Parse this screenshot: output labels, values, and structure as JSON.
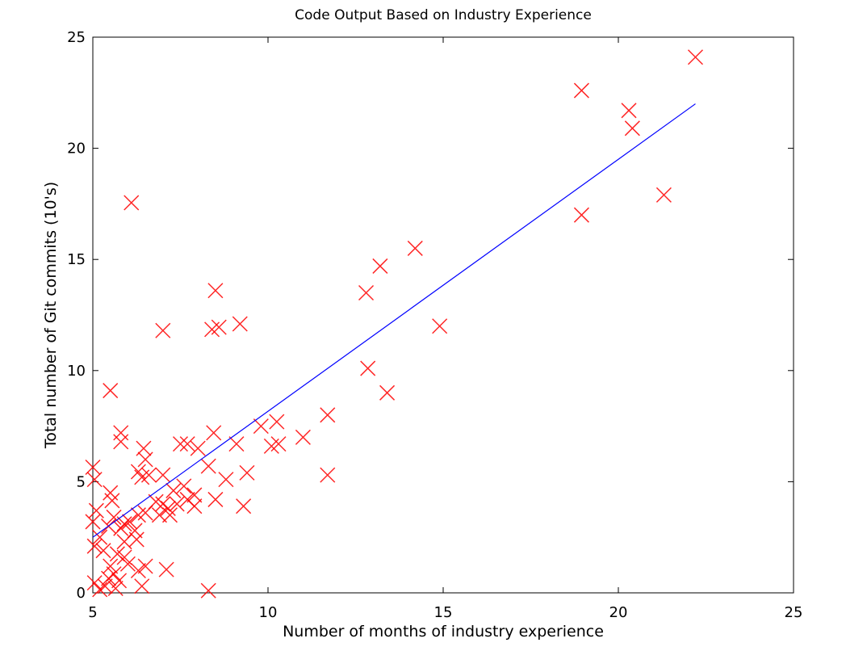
{
  "chart_data": {
    "type": "scatter",
    "title": "Code Output Based on Industry Experience",
    "xlabel": "Number of months of industry experience",
    "ylabel": "Total number of Git commits (10's)",
    "xlim": [
      5,
      25
    ],
    "ylim": [
      0,
      25
    ],
    "xticks": [
      5,
      10,
      15,
      20,
      25
    ],
    "yticks": [
      0,
      5,
      10,
      15,
      20,
      25
    ],
    "grid": false,
    "legend": "none",
    "series": [
      {
        "kind": "scatter",
        "marker": "x",
        "color": "#ff0000",
        "points": [
          [
            22.2,
            24.1
          ],
          [
            18.95,
            22.6
          ],
          [
            20.3,
            21.7
          ],
          [
            20.4,
            20.9
          ],
          [
            21.3,
            17.9
          ],
          [
            18.95,
            17.0
          ],
          [
            6.1,
            17.55
          ],
          [
            14.2,
            15.5
          ],
          [
            13.2,
            14.7
          ],
          [
            12.8,
            13.5
          ],
          [
            8.5,
            13.6
          ],
          [
            14.9,
            12.0
          ],
          [
            9.2,
            12.1
          ],
          [
            8.6,
            11.95
          ],
          [
            8.4,
            11.85
          ],
          [
            7.0,
            11.8
          ],
          [
            12.85,
            10.1
          ],
          [
            13.4,
            9.0
          ],
          [
            5.5,
            9.1
          ],
          [
            11.7,
            8.0
          ],
          [
            10.25,
            7.7
          ],
          [
            9.8,
            7.5
          ],
          [
            5.8,
            7.2
          ],
          [
            5.8,
            6.8
          ],
          [
            8.45,
            7.2
          ],
          [
            11.0,
            7.0
          ],
          [
            10.3,
            6.7
          ],
          [
            10.1,
            6.6
          ],
          [
            9.1,
            6.7
          ],
          [
            7.5,
            6.7
          ],
          [
            7.7,
            6.7
          ],
          [
            8.0,
            6.5
          ],
          [
            6.45,
            6.5
          ],
          [
            6.5,
            6.0
          ],
          [
            6.3,
            5.45
          ],
          [
            6.4,
            5.2
          ],
          [
            6.6,
            5.3
          ],
          [
            7.0,
            5.3
          ],
          [
            5.0,
            5.65
          ],
          [
            5.05,
            5.1
          ],
          [
            8.3,
            5.7
          ],
          [
            9.4,
            5.4
          ],
          [
            8.8,
            5.1
          ],
          [
            11.7,
            5.3
          ],
          [
            7.3,
            4.6
          ],
          [
            7.6,
            4.8
          ],
          [
            7.7,
            4.2
          ],
          [
            7.9,
            4.4
          ],
          [
            7.4,
            4.0
          ],
          [
            8.5,
            4.2
          ],
          [
            9.3,
            3.9
          ],
          [
            7.2,
            3.5
          ],
          [
            7.15,
            3.8
          ],
          [
            6.8,
            4.1
          ],
          [
            5.5,
            4.5
          ],
          [
            5.55,
            4.15
          ],
          [
            5.6,
            3.4
          ],
          [
            5.45,
            3.0
          ],
          [
            5.1,
            3.7
          ],
          [
            5.0,
            3.2
          ],
          [
            5.2,
            2.5
          ],
          [
            5.3,
            1.9
          ],
          [
            5.05,
            2.1
          ],
          [
            5.8,
            2.9
          ],
          [
            6.05,
            3.2
          ],
          [
            6.3,
            3.5
          ],
          [
            6.2,
            2.8
          ],
          [
            5.9,
            2.3
          ],
          [
            6.25,
            2.4
          ],
          [
            5.7,
            1.75
          ],
          [
            5.9,
            1.6
          ],
          [
            6.0,
            1.3
          ],
          [
            6.3,
            1.0
          ],
          [
            6.5,
            1.2
          ],
          [
            5.5,
            1.2
          ],
          [
            5.6,
            0.85
          ],
          [
            5.45,
            0.65
          ],
          [
            5.35,
            0.3
          ],
          [
            5.05,
            0.45
          ],
          [
            5.65,
            0.2
          ],
          [
            6.4,
            0.3
          ],
          [
            5.2,
            0.15
          ],
          [
            7.1,
            1.05
          ],
          [
            8.3,
            0.1
          ],
          [
            5.9,
            3.1
          ],
          [
            6.5,
            3.6
          ],
          [
            7.9,
            3.9
          ],
          [
            7.0,
            4.0
          ],
          [
            6.9,
            3.5
          ],
          [
            5.75,
            0.55
          ]
        ]
      },
      {
        "kind": "line",
        "color": "#0000ff",
        "points": [
          [
            5.0,
            2.5
          ],
          [
            22.2,
            22.0
          ]
        ]
      }
    ]
  }
}
